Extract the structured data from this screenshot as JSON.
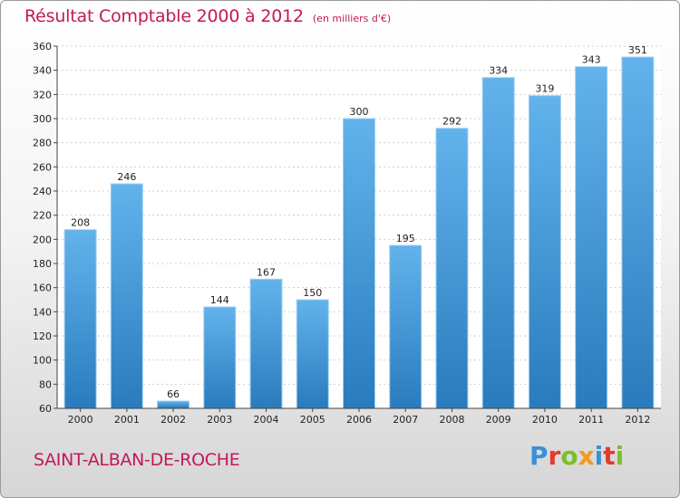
{
  "chart_data": {
    "type": "bar",
    "title": "Résultat Comptable 2000 à 2012",
    "subtitle": "(en milliers d'€)",
    "categories": [
      "2000",
      "2001",
      "2002",
      "2003",
      "2004",
      "2005",
      "2006",
      "2007",
      "2008",
      "2009",
      "2010",
      "2011",
      "2012"
    ],
    "values": [
      208,
      246,
      66,
      144,
      167,
      150,
      300,
      195,
      292,
      334,
      319,
      343,
      351
    ],
    "xlabel": "",
    "ylabel": "",
    "ylim": [
      60,
      360
    ],
    "yticks": [
      60,
      80,
      100,
      120,
      140,
      160,
      180,
      200,
      220,
      240,
      260,
      280,
      300,
      320,
      340,
      360
    ],
    "grid": true,
    "legend": "none"
  },
  "footer": {
    "town": "SAINT-ALBAN-DE-ROCHE",
    "logo_letters": [
      "P",
      "r",
      "o",
      "x",
      "i",
      "t",
      "i"
    ]
  },
  "colors": {
    "title": "#c2185b",
    "bar_top": "#62b3ec",
    "bar_bottom": "#2a7bbd",
    "bar_edge": "#9fd0f4"
  }
}
